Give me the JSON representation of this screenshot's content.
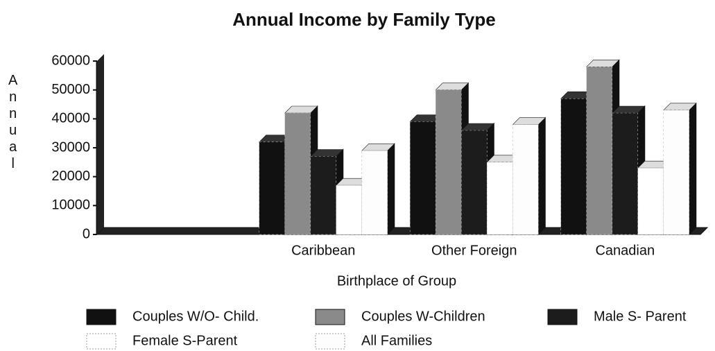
{
  "chart_data": {
    "type": "bar",
    "title": "Annual Income by Family Type",
    "x_label": "Birthplace of Group",
    "y_label": "Annual",
    "categories": [
      null,
      "Caribbean",
      "Other Foreign",
      "Canadian"
    ],
    "series": [
      {
        "name": "Couples W/O- Child.",
        "color": "#111111",
        "values": [
          null,
          32000,
          39000,
          47000
        ]
      },
      {
        "name": "Couples W-Children",
        "color": "#8a8a8a",
        "values": [
          null,
          42000,
          50000,
          58000
        ]
      },
      {
        "name": "Male S- Parent",
        "color": "#1c1c1c",
        "values": [
          null,
          27000,
          36000,
          42000
        ]
      },
      {
        "name": "Female S-Parent",
        "color": "#ffffff",
        "values": [
          null,
          17000,
          25000,
          23000
        ]
      },
      {
        "name": "All Families",
        "color": "#fdfdfd",
        "values": [
          null,
          29000,
          38000,
          43000
        ]
      }
    ],
    "ylim": [
      0,
      60000
    ],
    "yticks": [
      0,
      10000,
      20000,
      30000,
      40000,
      50000,
      60000
    ],
    "legend": "bottom"
  }
}
